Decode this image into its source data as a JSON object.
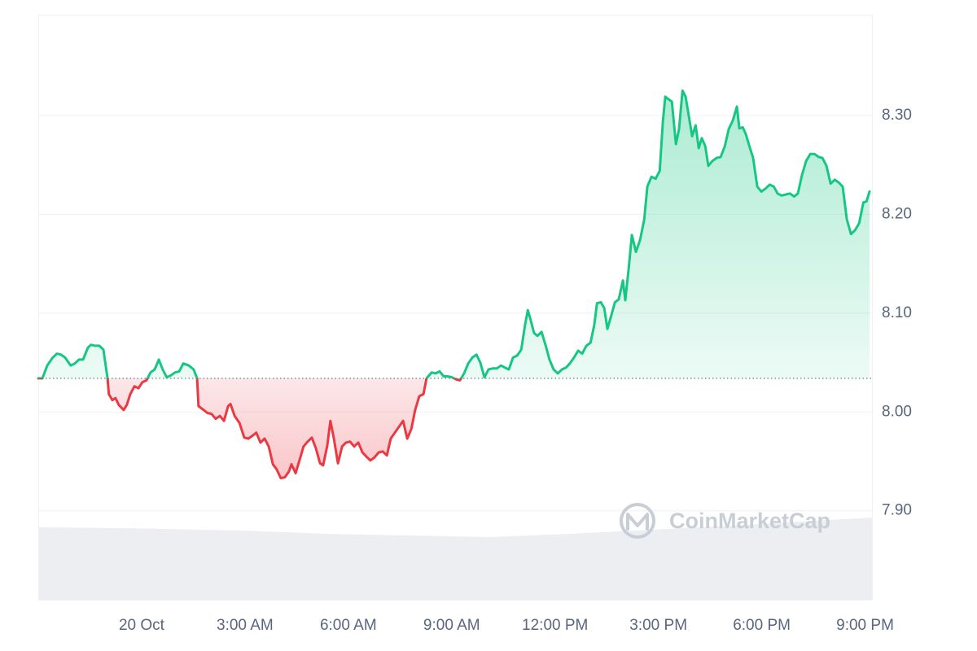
{
  "chart_data": {
    "type": "line",
    "watermark": "CoinMarketCap",
    "color": "#16c784",
    "negative_color": "#ea3943",
    "baseline": 8.034,
    "xlim": [
      -3,
      21.2
    ],
    "ylim": [
      7.81,
      8.402
    ],
    "grid": true,
    "xticks": [
      {
        "value": 0,
        "label": "20 Oct"
      },
      {
        "value": 3,
        "label": "3:00 AM"
      },
      {
        "value": 6,
        "label": "6:00 AM"
      },
      {
        "value": 9,
        "label": "9:00 AM"
      },
      {
        "value": 12,
        "label": "12:00 PM"
      },
      {
        "value": 15,
        "label": "3:00 PM"
      },
      {
        "value": 18,
        "label": "6:00 PM"
      },
      {
        "value": 21,
        "label": "9:00 PM"
      }
    ],
    "yticks": [
      {
        "value": 7.9,
        "label": "7.90"
      },
      {
        "value": 8,
        "label": "8.00"
      },
      {
        "value": 8.1,
        "label": "8.10"
      },
      {
        "value": 8.2,
        "label": "8.20"
      },
      {
        "value": 8.3,
        "label": "8.30"
      }
    ],
    "x": [
      -3.0,
      -2.88,
      -2.74,
      -2.58,
      -2.46,
      -2.34,
      -2.22,
      -2.06,
      -1.94,
      -1.82,
      -1.7,
      -1.56,
      -1.47,
      -1.35,
      -1.23,
      -1.11,
      -0.99,
      -0.95,
      -0.85,
      -0.76,
      -0.66,
      -0.52,
      -0.43,
      -0.33,
      -0.21,
      -0.09,
      0.02,
      0.14,
      0.26,
      0.38,
      0.5,
      0.61,
      0.73,
      0.85,
      0.97,
      1.09,
      1.21,
      1.37,
      1.51,
      1.61,
      1.65,
      1.8,
      1.91,
      2.03,
      2.15,
      2.27,
      2.39,
      2.51,
      2.58,
      2.7,
      2.84,
      2.98,
      3.1,
      3.22,
      3.33,
      3.45,
      3.57,
      3.69,
      3.81,
      3.92,
      4.04,
      4.16,
      4.28,
      4.35,
      4.47,
      4.59,
      4.7,
      4.82,
      4.94,
      5.06,
      5.18,
      5.27,
      5.39,
      5.48,
      5.58,
      5.7,
      5.82,
      5.93,
      6.05,
      6.17,
      6.29,
      6.41,
      6.52,
      6.64,
      6.76,
      6.88,
      7.0,
      7.12,
      7.23,
      7.35,
      7.47,
      7.59,
      7.71,
      7.83,
      7.94,
      8.06,
      8.18,
      8.27,
      8.42,
      8.53,
      8.65,
      8.77,
      8.89,
      9.01,
      9.13,
      9.24,
      9.36,
      9.48,
      9.6,
      9.72,
      9.83,
      9.95,
      10.07,
      10.19,
      10.31,
      10.43,
      10.54,
      10.66,
      10.78,
      10.9,
      11.02,
      11.13,
      11.21,
      11.3,
      11.39,
      11.49,
      11.61,
      11.73,
      11.84,
      11.96,
      12.08,
      12.2,
      12.32,
      12.43,
      12.55,
      12.67,
      12.79,
      12.91,
      13.03,
      13.14,
      13.22,
      13.33,
      13.43,
      13.52,
      13.62,
      13.74,
      13.85,
      13.97,
      14.04,
      14.14,
      14.23,
      14.35,
      14.47,
      14.59,
      14.68,
      14.8,
      14.92,
      15.04,
      15.13,
      15.2,
      15.27,
      15.39,
      15.51,
      15.6,
      15.7,
      15.79,
      15.89,
      15.98,
      16.08,
      16.17,
      16.26,
      16.36,
      16.45,
      16.57,
      16.69,
      16.81,
      16.93,
      17.04,
      17.16,
      17.28,
      17.35,
      17.45,
      17.54,
      17.64,
      17.75,
      17.87,
      17.99,
      18.11,
      18.23,
      18.35,
      18.46,
      18.58,
      18.7,
      18.82,
      18.94,
      19.05,
      19.17,
      19.29,
      19.41,
      19.53,
      19.65,
      19.76,
      19.88,
      20.0,
      20.12,
      20.24,
      20.35,
      20.47,
      20.59,
      20.71,
      20.83,
      20.95,
      21.04,
      21.13
    ],
    "values": [
      8.034,
      8.034,
      8.047,
      8.055,
      8.059,
      8.058,
      8.055,
      8.047,
      8.049,
      8.053,
      8.053,
      8.065,
      8.068,
      8.067,
      8.067,
      8.063,
      8.034,
      8.018,
      8.012,
      8.014,
      8.007,
      8.002,
      8.007,
      8.018,
      8.026,
      8.024,
      8.03,
      8.032,
      8.04,
      8.043,
      8.053,
      8.043,
      8.035,
      8.037,
      8.04,
      8.041,
      8.049,
      8.047,
      8.043,
      8.034,
      8.006,
      8.002,
      7.999,
      7.998,
      7.993,
      7.996,
      7.991,
      8.006,
      8.008,
      7.996,
      7.989,
      7.974,
      7.973,
      7.976,
      7.979,
      7.969,
      7.973,
      7.965,
      7.947,
      7.942,
      7.933,
      7.934,
      7.94,
      7.947,
      7.938,
      7.952,
      7.965,
      7.97,
      7.974,
      7.963,
      7.948,
      7.946,
      7.966,
      7.991,
      7.973,
      7.948,
      7.965,
      7.969,
      7.97,
      7.965,
      7.969,
      7.959,
      7.955,
      7.951,
      7.954,
      7.959,
      7.96,
      7.956,
      7.973,
      7.979,
      7.985,
      7.991,
      7.973,
      7.983,
      8.002,
      8.016,
      8.018,
      8.034,
      8.04,
      8.039,
      8.041,
      8.036,
      8.036,
      8.035,
      8.033,
      8.032,
      8.039,
      8.049,
      8.055,
      8.058,
      8.05,
      8.035,
      8.043,
      8.044,
      8.044,
      8.047,
      8.045,
      8.043,
      8.055,
      8.057,
      8.063,
      8.088,
      8.103,
      8.092,
      8.08,
      8.077,
      8.081,
      8.067,
      8.053,
      8.043,
      8.039,
      8.043,
      8.045,
      8.049,
      8.055,
      8.062,
      8.059,
      8.067,
      8.07,
      8.088,
      8.11,
      8.111,
      8.105,
      8.084,
      8.096,
      8.111,
      8.114,
      8.133,
      8.113,
      8.146,
      8.179,
      8.162,
      8.174,
      8.195,
      8.228,
      8.238,
      8.236,
      8.244,
      8.294,
      8.319,
      8.317,
      8.314,
      8.271,
      8.286,
      8.325,
      8.319,
      8.298,
      8.279,
      8.29,
      8.267,
      8.277,
      8.269,
      8.249,
      8.254,
      8.257,
      8.258,
      8.269,
      8.286,
      8.295,
      8.309,
      8.287,
      8.288,
      8.281,
      8.269,
      8.257,
      8.228,
      8.223,
      8.226,
      8.23,
      8.228,
      8.221,
      8.219,
      8.22,
      8.221,
      8.218,
      8.221,
      8.24,
      8.254,
      8.261,
      8.261,
      8.258,
      8.257,
      8.249,
      8.231,
      8.235,
      8.232,
      8.228,
      8.195,
      8.18,
      8.184,
      8.191,
      8.212,
      8.213,
      8.223
    ]
  }
}
